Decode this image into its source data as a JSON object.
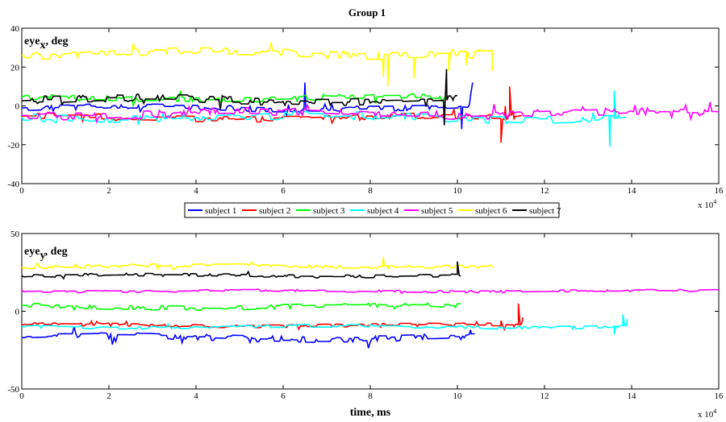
{
  "figure_title": "Group 1",
  "x_exponent_label": "x 10",
  "x_exponent_power": "4",
  "legend": [
    "subject 1",
    "subject 2",
    "subject 3",
    "subject 4",
    "subject 5",
    "subject 6",
    "subject 7"
  ],
  "chart_data": [
    {
      "type": "line",
      "title": "Group 1",
      "ylabel_main": "eye",
      "ylabel_sub": "x",
      "ylabel_rest": ", deg",
      "xlabel": "",
      "xlim": [
        0,
        16
      ],
      "ylim": [
        -40,
        40
      ],
      "x_scale_note": "x values in units of 10^4 ms",
      "xticks": [
        "0",
        "2",
        "4",
        "6",
        "8",
        "10",
        "12",
        "14",
        "16"
      ],
      "yticks": [
        "-40",
        "-20",
        "0",
        "20",
        "40"
      ],
      "ytick_values": [
        -40,
        -20,
        0,
        20,
        40
      ],
      "series": [
        {
          "name": "subject 1",
          "color": "#0000ff",
          "end": 10.3,
          "mean": -1,
          "noise": 3,
          "points": [
            [
              6.5,
              12
            ],
            [
              10.1,
              -12
            ],
            [
              10.3,
              5
            ],
            [
              10.35,
              12
            ]
          ]
        },
        {
          "name": "subject 2",
          "color": "#ff0000",
          "end": 11.5,
          "mean": -6,
          "noise": 3,
          "points": [
            [
              11.0,
              -19
            ],
            [
              11.1,
              0
            ],
            [
              11.2,
              10
            ],
            [
              11.3,
              -7
            ]
          ]
        },
        {
          "name": "subject 3",
          "color": "#00ff00",
          "end": 9.8,
          "mean": 4,
          "noise": 3,
          "points": []
        },
        {
          "name": "subject 4",
          "color": "#00ffff",
          "end": 13.9,
          "mean": -6,
          "noise": 4,
          "points": [
            [
              13.5,
              -21
            ],
            [
              13.6,
              8
            ],
            [
              13.7,
              -5
            ]
          ]
        },
        {
          "name": "subject 5",
          "color": "#ff00ff",
          "end": 16.0,
          "mean": -4,
          "noise": 4,
          "points": []
        },
        {
          "name": "subject 6",
          "color": "#ffff00",
          "end": 10.8,
          "mean": 27,
          "noise": 4,
          "points": [
            [
              8.2,
              28
            ],
            [
              8.3,
              15
            ],
            [
              8.4,
              10
            ],
            [
              9.0,
              14
            ],
            [
              9.8,
              18
            ],
            [
              10.2,
              21
            ],
            [
              10.5,
              28
            ],
            [
              10.8,
              18
            ]
          ]
        },
        {
          "name": "subject 7",
          "color": "#000000",
          "end": 10.0,
          "mean": 3,
          "noise": 4,
          "points": [
            [
              9.7,
              -10
            ],
            [
              9.75,
              19
            ],
            [
              9.9,
              3
            ]
          ]
        }
      ]
    },
    {
      "type": "line",
      "title": "",
      "ylabel_main": "eye",
      "ylabel_sub": "y",
      "ylabel_rest": ", deg",
      "xlabel": "time, ms",
      "xlim": [
        0,
        16
      ],
      "ylim": [
        -50,
        50
      ],
      "x_scale_note": "x values in units of 10^4 ms",
      "xticks": [
        "0",
        "2",
        "4",
        "6",
        "8",
        "10",
        "12",
        "14",
        "16"
      ],
      "yticks": [
        "-50",
        "0",
        "50"
      ],
      "ytick_values": [
        -50,
        0,
        50
      ],
      "series": [
        {
          "name": "subject 1",
          "color": "#0000ff",
          "end": 10.4,
          "mean": -17,
          "noise": 4,
          "points": [
            [
              10.3,
              -12
            ]
          ]
        },
        {
          "name": "subject 2",
          "color": "#ff0000",
          "end": 11.5,
          "mean": -9,
          "noise": 2,
          "points": [
            [
              11.0,
              -6
            ],
            [
              11.3,
              -10
            ],
            [
              11.4,
              5
            ],
            [
              11.5,
              -4
            ]
          ]
        },
        {
          "name": "subject 3",
          "color": "#00ff00",
          "end": 10.1,
          "mean": 3,
          "noise": 3,
          "points": []
        },
        {
          "name": "subject 4",
          "color": "#00ffff",
          "end": 13.9,
          "mean": -10,
          "noise": 2,
          "points": [
            [
              13.6,
              -15
            ],
            [
              13.8,
              -2
            ],
            [
              13.9,
              -5
            ]
          ]
        },
        {
          "name": "subject 5",
          "color": "#ff00ff",
          "end": 16.0,
          "mean": 13,
          "noise": 1.5,
          "points": []
        },
        {
          "name": "subject 6",
          "color": "#ffff00",
          "end": 10.8,
          "mean": 29,
          "noise": 2,
          "points": [
            [
              8.3,
              35
            ],
            [
              8.4,
              27
            ],
            [
              10.8,
              28
            ]
          ]
        },
        {
          "name": "subject 7",
          "color": "#000000",
          "end": 10.1,
          "mean": 23,
          "noise": 2,
          "points": [
            [
              10.0,
              32
            ]
          ]
        }
      ]
    }
  ]
}
